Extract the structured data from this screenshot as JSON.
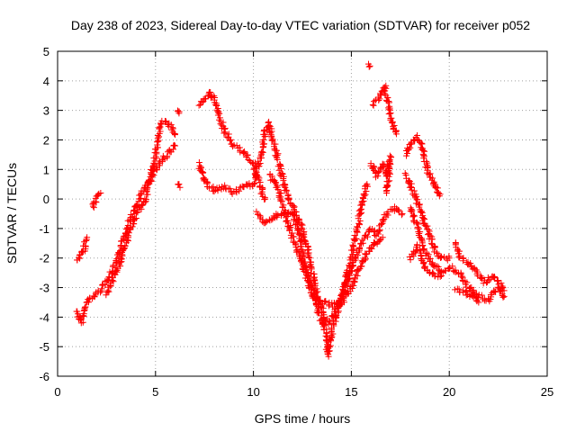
{
  "chart_data": {
    "type": "scatter",
    "title": "Day 238 of 2023, Sidereal Day-to-day VTEC variation (SDTVAR) for receiver p052",
    "xlabel": "GPS time / hours",
    "ylabel": "SDTVAR / TECUs",
    "xlim": [
      0,
      25
    ],
    "ylim": [
      -6,
      5
    ],
    "xticks": [
      0,
      5,
      10,
      15,
      20,
      25
    ],
    "yticks": [
      -6,
      -5,
      -4,
      -3,
      -2,
      -1,
      0,
      1,
      2,
      3,
      4,
      5
    ],
    "grid": true,
    "legend": "none",
    "marker": "+",
    "color": "#ff0000",
    "series_tracks": [
      [
        [
          1,
          -3.8
        ],
        [
          1.2,
          -4.2
        ],
        [
          1.5,
          -3.5
        ],
        [
          2,
          -3.2
        ],
        [
          2.5,
          -2.8
        ],
        [
          3,
          -2.2
        ],
        [
          3.3,
          -1.5
        ],
        [
          3.6,
          -0.8
        ],
        [
          4,
          -0.3
        ],
        [
          4.3,
          0.2
        ],
        [
          4.6,
          0.5
        ],
        [
          5,
          1
        ],
        [
          5.3,
          1.3
        ],
        [
          5.6,
          1.5
        ],
        [
          6,
          1.8
        ]
      ],
      [
        [
          1,
          -2.1
        ],
        [
          1.3,
          -1.8
        ],
        [
          1.5,
          -1.3
        ]
      ],
      [
        [
          1.8,
          -0.3
        ],
        [
          2,
          0
        ],
        [
          2.2,
          0.2
        ]
      ],
      [
        [
          2.5,
          -3.2
        ],
        [
          3,
          -2.5
        ],
        [
          3.5,
          -1.5
        ],
        [
          4,
          -0.5
        ],
        [
          4.5,
          0
        ],
        [
          5,
          1.5
        ],
        [
          5.3,
          2.6
        ],
        [
          5.8,
          2.5
        ],
        [
          6,
          2.2
        ]
      ],
      [
        [
          6.2,
          3
        ],
        [
          6.2,
          2.9
        ]
      ],
      [
        [
          6.2,
          0.4
        ],
        [
          6.2,
          0.5
        ]
      ],
      [
        [
          7.2,
          3.2
        ],
        [
          7.4,
          3.3
        ],
        [
          7.8,
          3.6
        ],
        [
          8.1,
          3.2
        ],
        [
          8.3,
          2.7
        ],
        [
          8.6,
          2.2
        ],
        [
          9,
          1.8
        ],
        [
          9.5,
          1.6
        ],
        [
          10,
          1.2
        ],
        [
          10.3,
          0.5
        ],
        [
          10.6,
          0
        ]
      ],
      [
        [
          7.2,
          1.2
        ],
        [
          7.6,
          0.5
        ],
        [
          8,
          0.3
        ],
        [
          8.5,
          0.4
        ],
        [
          9,
          0.2
        ],
        [
          9.5,
          0.4
        ],
        [
          10,
          0.5
        ],
        [
          10.4,
          1.5
        ],
        [
          10.6,
          2.3
        ],
        [
          10.8,
          2.6
        ],
        [
          11,
          2
        ],
        [
          11.3,
          1.2
        ],
        [
          11.6,
          0.4
        ],
        [
          12,
          -0.3
        ],
        [
          12.4,
          -0.8
        ],
        [
          12.7,
          -1.5
        ],
        [
          13,
          -2.5
        ],
        [
          13.3,
          -3.3
        ],
        [
          13.6,
          -4
        ],
        [
          13.8,
          -5.3
        ],
        [
          14,
          -4.5
        ],
        [
          14.3,
          -3.8
        ],
        [
          14.6,
          -3
        ],
        [
          15,
          -2
        ],
        [
          15.3,
          -1
        ],
        [
          15.6,
          0
        ],
        [
          15.8,
          0.5
        ]
      ],
      [
        [
          10.2,
          -0.5
        ],
        [
          10.6,
          -0.8
        ],
        [
          11,
          -0.6
        ],
        [
          11.5,
          -0.5
        ],
        [
          12,
          -0.5
        ],
        [
          12.3,
          -1
        ],
        [
          12.6,
          -2.2
        ],
        [
          13,
          -3
        ],
        [
          13.3,
          -3.8
        ],
        [
          13.6,
          -4.3
        ],
        [
          14,
          -4
        ],
        [
          14.4,
          -3.5
        ],
        [
          14.8,
          -2.8
        ],
        [
          15.2,
          -2
        ],
        [
          15.5,
          -1.5
        ],
        [
          16,
          -1
        ],
        [
          16.3,
          -1.2
        ],
        [
          16.8,
          -0.5
        ],
        [
          17.2,
          -0.3
        ],
        [
          17.6,
          -0.5
        ]
      ],
      [
        [
          10.8,
          0.8
        ],
        [
          11.2,
          0.5
        ],
        [
          11.6,
          -0.5
        ],
        [
          12,
          -1.3
        ],
        [
          12.4,
          -2
        ],
        [
          12.8,
          -2.8
        ],
        [
          13.2,
          -3.5
        ],
        [
          13.6,
          -3.5
        ],
        [
          14,
          -3.6
        ],
        [
          14.5,
          -3.5
        ],
        [
          15,
          -3
        ],
        [
          15.4,
          -2.4
        ],
        [
          15.8,
          -1.8
        ],
        [
          16.2,
          -1.5
        ],
        [
          16.6,
          -1.3
        ]
      ],
      [
        [
          15.9,
          4.5
        ],
        [
          15.95,
          4.5
        ]
      ],
      [
        [
          16.1,
          3.2
        ],
        [
          16.3,
          3.3
        ],
        [
          16.5,
          3.5
        ],
        [
          16.7,
          3.8
        ],
        [
          16.9,
          3.2
        ],
        [
          17,
          2.8
        ],
        [
          17.3,
          2.2
        ]
      ],
      [
        [
          16,
          1.2
        ],
        [
          16.3,
          0.8
        ],
        [
          16.6,
          1.2
        ],
        [
          16.8,
          0.8
        ],
        [
          17,
          1.4
        ],
        [
          16.8,
          0.2
        ]
      ],
      [
        [
          17.8,
          1.5
        ],
        [
          18,
          1.8
        ],
        [
          18.3,
          2.1
        ],
        [
          18.6,
          1.8
        ],
        [
          18.9,
          1
        ],
        [
          19.2,
          0.5
        ],
        [
          19.5,
          0.1
        ]
      ],
      [
        [
          17.8,
          0.8
        ],
        [
          18,
          0.5
        ],
        [
          18.3,
          0
        ],
        [
          18.6,
          -0.5
        ],
        [
          19,
          -1.2
        ],
        [
          19.3,
          -1.8
        ],
        [
          19.6,
          -2
        ],
        [
          20,
          -2
        ]
      ],
      [
        [
          18,
          -0.3
        ],
        [
          18.4,
          -1
        ],
        [
          18.8,
          -1.8
        ],
        [
          19.2,
          -2.2
        ],
        [
          19.6,
          -2.5
        ],
        [
          20,
          -2.3
        ],
        [
          20.5,
          -2.5
        ],
        [
          21,
          -3
        ],
        [
          21.5,
          -3.3
        ],
        [
          22,
          -3.4
        ],
        [
          22.5,
          -3
        ],
        [
          22.8,
          -3.3
        ]
      ],
      [
        [
          18,
          -2
        ],
        [
          18.4,
          -1.6
        ],
        [
          18.8,
          -2.4
        ],
        [
          19.2,
          -2.6
        ],
        [
          19.6,
          -2.6
        ]
      ],
      [
        [
          20.3,
          -1.5
        ],
        [
          20.6,
          -2
        ],
        [
          21,
          -2.2
        ],
        [
          21.4,
          -2.5
        ],
        [
          21.8,
          -2.8
        ],
        [
          22.2,
          -2.6
        ],
        [
          22.6,
          -2.9
        ],
        [
          22.8,
          -3.1
        ]
      ],
      [
        [
          20.3,
          -3.1
        ],
        [
          21,
          -3.2
        ],
        [
          21.5,
          -3.5
        ]
      ]
    ]
  }
}
